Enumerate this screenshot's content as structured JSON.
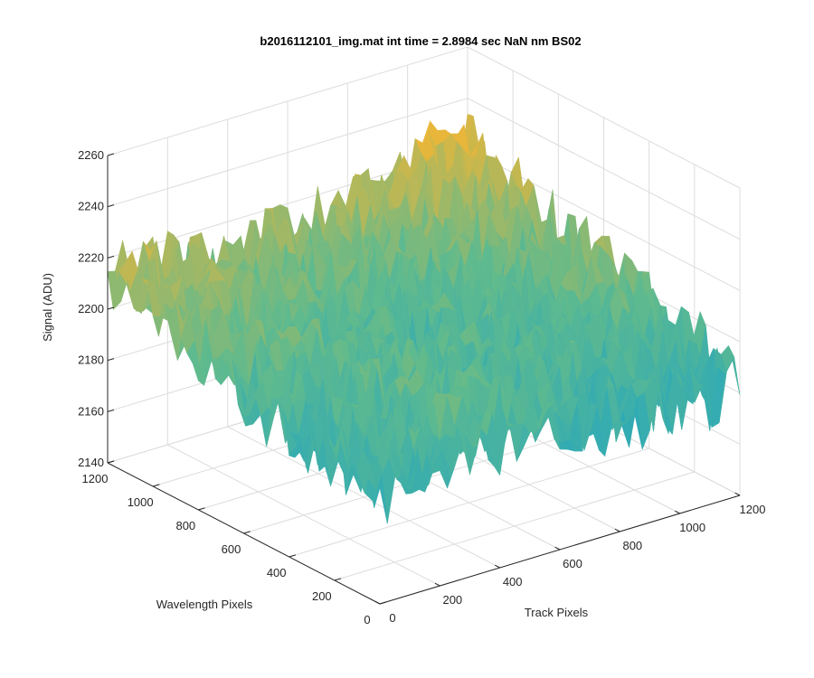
{
  "chart_data": {
    "type": "surface",
    "title": "b2016112101_img.mat int time = 2.8984 sec  NaN nm BS02",
    "xlabel": "Track Pixels",
    "ylabel": "Wavelength Pixels",
    "zlabel": "Signal (ADU)",
    "x_ticks": [
      "0",
      "200",
      "400",
      "600",
      "800",
      "1000",
      "1200"
    ],
    "y_ticks": [
      "0",
      "200",
      "400",
      "600",
      "800",
      "1000",
      "1200"
    ],
    "z_ticks": [
      "2140",
      "2160",
      "2180",
      "2200",
      "2220",
      "2240",
      "2260"
    ],
    "xlim": [
      0,
      1200
    ],
    "ylim": [
      0,
      1200
    ],
    "zlim": [
      2140,
      2260
    ],
    "grid": true,
    "colormap": "parula",
    "colors": {
      "low": "#1aa3c7",
      "mid": "#5fba8e",
      "high": "#e8b63a"
    },
    "surface_profile": {
      "corners": {
        "x0_y0": 2177,
        "x1200_y0": 2188,
        "x0_y1200": 2204,
        "x1200_y1200": 2219
      },
      "noise_amplitude": 14,
      "min_spike": 2150,
      "max_spike": 2250
    }
  }
}
